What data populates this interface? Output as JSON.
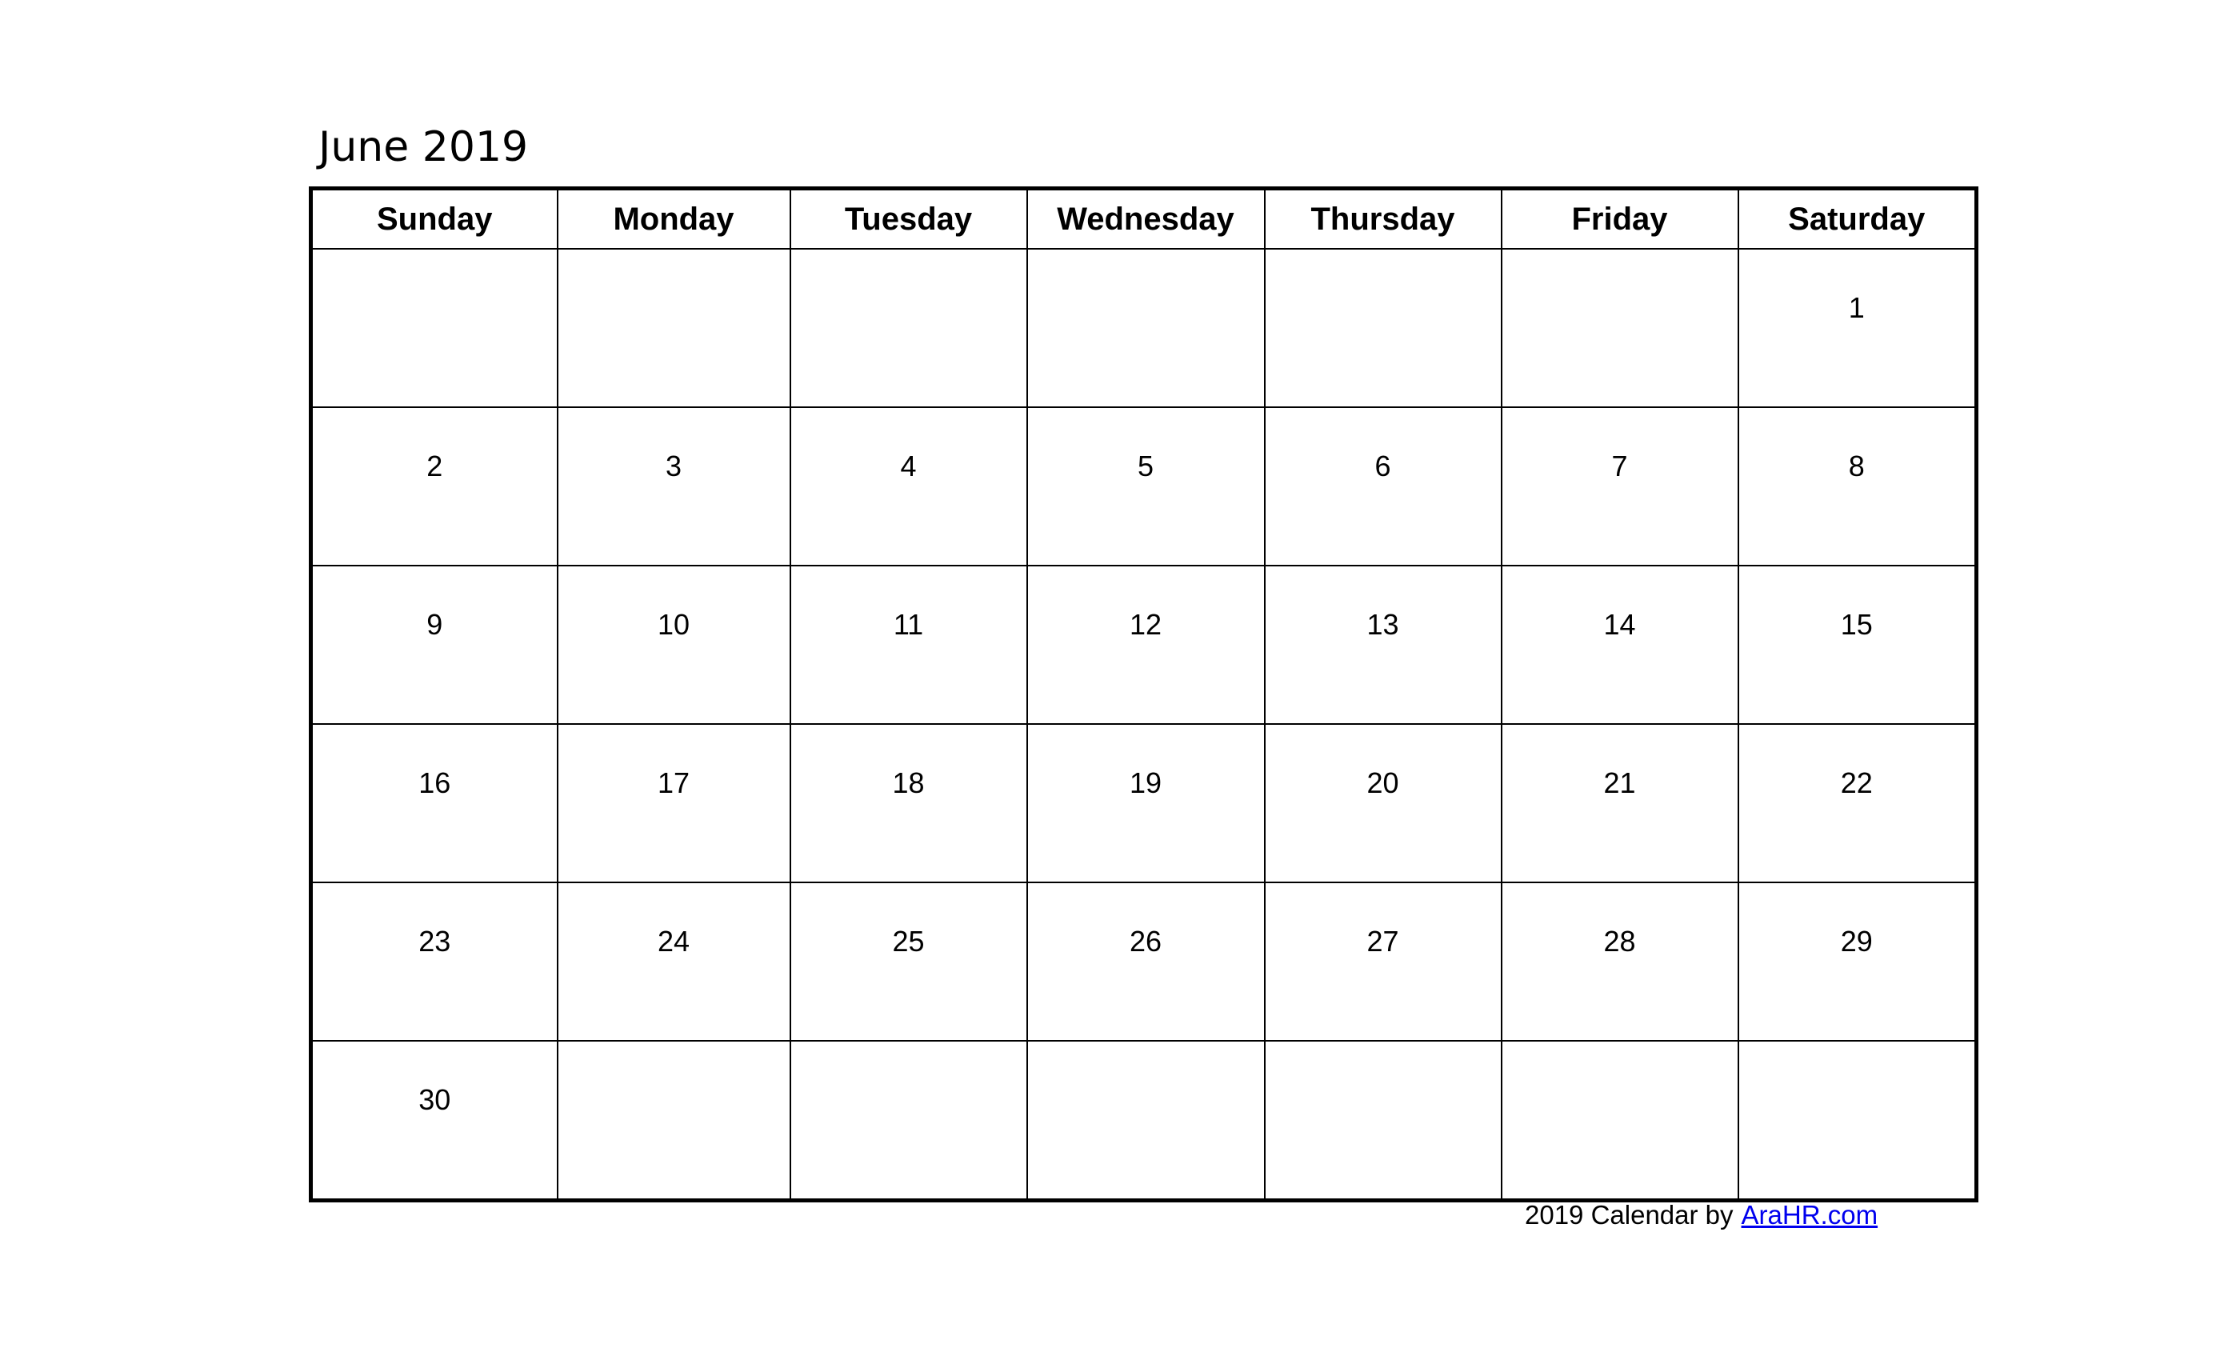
{
  "title": "June 2019",
  "weekdays": [
    "Sunday",
    "Monday",
    "Tuesday",
    "Wednesday",
    "Thursday",
    "Friday",
    "Saturday"
  ],
  "weeks": [
    [
      "",
      "",
      "",
      "",
      "",
      "",
      "1"
    ],
    [
      "2",
      "3",
      "4",
      "5",
      "6",
      "7",
      "8"
    ],
    [
      "9",
      "10",
      "11",
      "12",
      "13",
      "14",
      "15"
    ],
    [
      "16",
      "17",
      "18",
      "19",
      "20",
      "21",
      "22"
    ],
    [
      "23",
      "24",
      "25",
      "26",
      "27",
      "28",
      "29"
    ],
    [
      "30",
      "",
      "",
      "",
      "",
      "",
      ""
    ]
  ],
  "footer": {
    "text": "2019 Calendar by",
    "link_label": "AraHR.com",
    "link_color": "#0000ee"
  }
}
